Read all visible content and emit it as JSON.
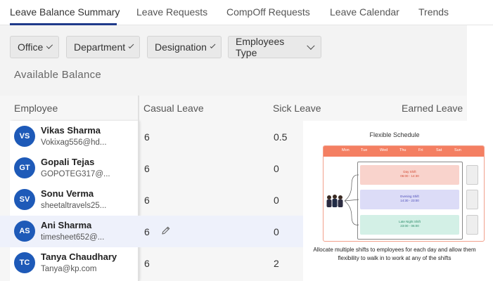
{
  "tabs": [
    {
      "label": "Leave Balance Summary",
      "active": true
    },
    {
      "label": "Leave Requests",
      "active": false
    },
    {
      "label": "CompOff Requests",
      "active": false
    },
    {
      "label": "Leave Calendar",
      "active": false
    },
    {
      "label": "Trends",
      "active": false
    }
  ],
  "filters": [
    "Office",
    "Department",
    "Designation",
    "Employees Type"
  ],
  "section_title": "Available Balance",
  "table": {
    "headers": [
      "Employee",
      "Casual Leave",
      "Sick Leave",
      "Earned Leave"
    ],
    "rows": [
      {
        "initials": "VS",
        "name": "Vikas Sharma",
        "email": "Vokixag556@hd...",
        "casual": "6",
        "sick": "0.5"
      },
      {
        "initials": "GT",
        "name": "Gopali Tejas",
        "email": "GOPOTEG317@...",
        "casual": "6",
        "sick": "0"
      },
      {
        "initials": "SV",
        "name": "Sonu Verma",
        "email": "sheetaltravels25...",
        "casual": "6",
        "sick": "0"
      },
      {
        "initials": "AS",
        "name": "Ani Sharma",
        "email": "timesheet652@...",
        "casual": "6",
        "sick": "0"
      },
      {
        "initials": "TC",
        "name": "Tanya Chaudhary",
        "email": "Tanya@kp.com",
        "casual": "6",
        "sick": "2"
      }
    ]
  },
  "promo": {
    "title": "Flexible Schedule",
    "days": [
      "Sun",
      "Mon",
      "Tue",
      "Wed",
      "Thu",
      "Fri",
      "Sat",
      "Sun"
    ],
    "shifts": [
      {
        "name": "Day Shift",
        "time": "06:00 - 14:30"
      },
      {
        "name": "Evening Shift",
        "time": "14:30 - 23:00"
      },
      {
        "name": "Late Night Shift",
        "time": "23:00 - 06:00"
      }
    ],
    "caption_line1": "Allocate multiple shifts to employees for each day and allow them",
    "caption_line2": "flexibility to walk in to work at any of the shifts"
  },
  "colors": {
    "accent": "#1f3a8a",
    "avatar": "#1e5ab8",
    "row_highlight": "#eef1fb",
    "schedule_header": "#f47f62",
    "day_shift": "#f9d3cc",
    "evening_shift": "#dcdcf7",
    "late_night_shift": "#d3f0e6"
  },
  "icons": {
    "edit": "pencil-icon",
    "dropdown": "chevron-down-icon"
  }
}
